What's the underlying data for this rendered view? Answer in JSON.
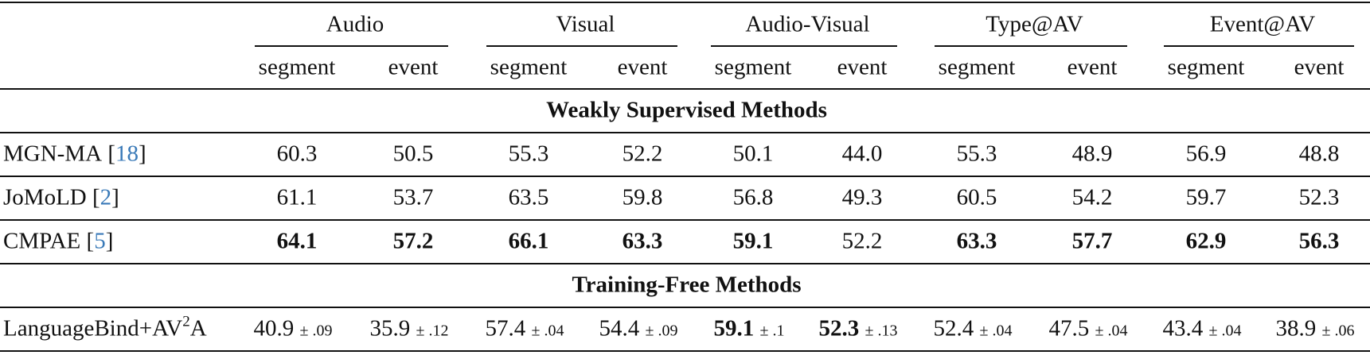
{
  "table": {
    "groups": [
      "Audio",
      "Visual",
      "Audio-Visual",
      "Type@AV",
      "Event@AV"
    ],
    "subheaders": [
      "segment",
      "event",
      "segment",
      "event",
      "segment",
      "event",
      "segment",
      "event",
      "segment",
      "event"
    ],
    "sections": [
      {
        "title": "Weakly Supervised Methods",
        "rows": [
          {
            "method": "MGN-MA",
            "citation": {
              "open": "[",
              "number": "18",
              "close": "]"
            },
            "cells": [
              {
                "value": "60.3"
              },
              {
                "value": "50.5"
              },
              {
                "value": "55.3"
              },
              {
                "value": "52.2"
              },
              {
                "value": "50.1"
              },
              {
                "value": "44.0"
              },
              {
                "value": "55.3"
              },
              {
                "value": "48.9"
              },
              {
                "value": "56.9"
              },
              {
                "value": "48.8"
              }
            ]
          },
          {
            "method": "JoMoLD",
            "citation": {
              "open": "[",
              "number": "2",
              "close": "]"
            },
            "cells": [
              {
                "value": "61.1"
              },
              {
                "value": "53.7"
              },
              {
                "value": "63.5"
              },
              {
                "value": "59.8"
              },
              {
                "value": "56.8"
              },
              {
                "value": "49.3"
              },
              {
                "value": "60.5"
              },
              {
                "value": "54.2"
              },
              {
                "value": "59.7"
              },
              {
                "value": "52.3"
              }
            ]
          },
          {
            "method": "CMPAE",
            "citation": {
              "open": "[",
              "number": "5",
              "close": "]"
            },
            "cells": [
              {
                "value": "64.1",
                "bold": true
              },
              {
                "value": "57.2",
                "bold": true
              },
              {
                "value": "66.1",
                "bold": true
              },
              {
                "value": "63.3",
                "bold": true
              },
              {
                "value": "59.1",
                "bold": true
              },
              {
                "value": "52.2"
              },
              {
                "value": "63.3",
                "bold": true
              },
              {
                "value": "57.7",
                "bold": true
              },
              {
                "value": "62.9",
                "bold": true
              },
              {
                "value": "56.3",
                "bold": true
              }
            ]
          }
        ]
      },
      {
        "title": "Training-Free Methods",
        "rows": [
          {
            "method_parts": [
              {
                "text": "LanguageBind+AV"
              },
              {
                "text": "2",
                "sup": true
              },
              {
                "text": "A"
              }
            ],
            "cells": [
              {
                "value": "40.9",
                "std": "± .09"
              },
              {
                "value": "35.9",
                "std": "± .12"
              },
              {
                "value": "57.4",
                "std": "± .04"
              },
              {
                "value": "54.4",
                "std": "± .09"
              },
              {
                "value": "59.1",
                "std": "± .1",
                "bold": true
              },
              {
                "value": "52.3",
                "std": "± .13",
                "bold": true
              },
              {
                "value": "52.4",
                "std": "± .04"
              },
              {
                "value": "47.5",
                "std": "± .04"
              },
              {
                "value": "43.4",
                "std": "± .04"
              },
              {
                "value": "38.9",
                "std": "± .06"
              }
            ]
          }
        ]
      }
    ]
  }
}
